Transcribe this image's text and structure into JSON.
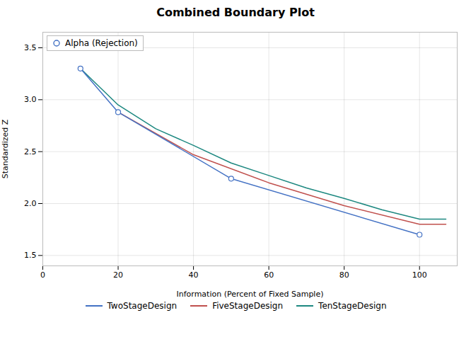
{
  "chart_data": {
    "type": "line",
    "title": "Combined Boundary Plot",
    "xlabel": "Information (Percent of Fixed Sample)",
    "ylabel": "Standardized Z",
    "xlim": [
      0,
      110
    ],
    "ylim": [
      1.4,
      3.65
    ],
    "xticks": [
      0,
      20,
      40,
      60,
      80,
      100
    ],
    "yticks": [
      1.5,
      {
        "value": 2.0,
        "label": "2.0"
      },
      2.5,
      {
        "value": 3.0,
        "label": "3.0"
      },
      3.5
    ],
    "grid": true,
    "legend": "bottom",
    "series": [
      {
        "name": "TwoStageDesign",
        "color": "#4472C4",
        "marker": "circle",
        "x": [
          10,
          20,
          50,
          100
        ],
        "values": [
          3.3,
          2.88,
          2.24,
          1.7
        ]
      },
      {
        "name": "FiveStageDesign",
        "color": "#C0504D",
        "x": [
          20,
          40,
          60,
          80,
          100,
          107
        ],
        "values": [
          2.88,
          2.47,
          2.2,
          1.98,
          1.8,
          1.8
        ]
      },
      {
        "name": "TenStageDesign",
        "color": "#1D8880",
        "x": [
          10,
          20,
          30,
          40,
          50,
          60,
          70,
          80,
          90,
          100,
          107
        ],
        "values": [
          3.3,
          2.95,
          2.72,
          2.56,
          2.39,
          2.27,
          2.15,
          2.05,
          1.94,
          1.85,
          1.85
        ]
      }
    ],
    "annotations": [
      {
        "text": "Alpha (Rejection)",
        "marker": "circle",
        "color": "#4472C4"
      }
    ]
  }
}
